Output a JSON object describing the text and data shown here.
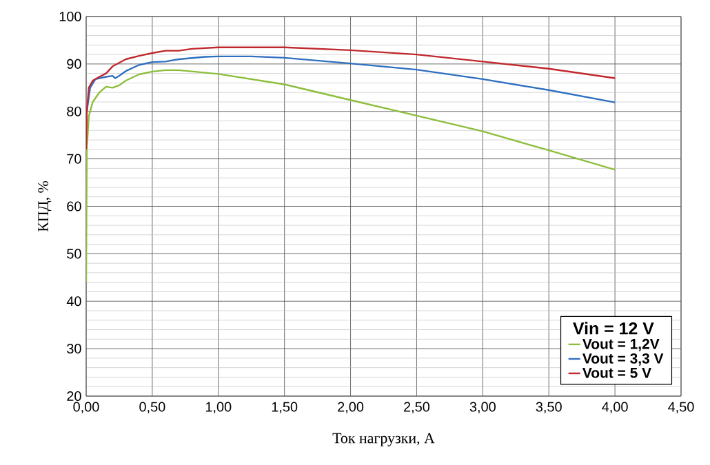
{
  "chart_data": {
    "type": "line",
    "xlabel": "Ток нагрузки, A",
    "ylabel": "КПД, %",
    "legend_title": "Vin = 12 V",
    "legend": "bottom right",
    "grid": true,
    "line_style": "solid",
    "marker": "none",
    "xlim": [
      0,
      4.5
    ],
    "ylim": [
      20,
      100
    ],
    "xticks": [
      {
        "value": 0,
        "label": "0,00"
      },
      {
        "value": 0.5,
        "label": "0,50"
      },
      {
        "value": 1,
        "label": "1,00"
      },
      {
        "value": 1.5,
        "label": "1,50"
      },
      {
        "value": 2,
        "label": "2,00"
      },
      {
        "value": 2.5,
        "label": "2,50"
      },
      {
        "value": 3,
        "label": "3,00"
      },
      {
        "value": 3.5,
        "label": "3,50"
      },
      {
        "value": 4,
        "label": "4,00"
      },
      {
        "value": 4.5,
        "label": "4,50"
      }
    ],
    "yticks": [
      20,
      30,
      40,
      50,
      60,
      70,
      80,
      90,
      100
    ],
    "series": [
      {
        "name": "Vout = 1,2V",
        "color": "#8cbe3c",
        "x": [
          0,
          0.005,
          0.02,
          0.05,
          0.1,
          0.15,
          0.2,
          0.25,
          0.3,
          0.4,
          0.5,
          0.6,
          0.7,
          1.0,
          1.5,
          2.0,
          2.5,
          3.0,
          3.5,
          4.0
        ],
        "values": [
          44,
          72,
          79,
          82,
          84,
          85.2,
          85,
          85.5,
          86.5,
          87.8,
          88.4,
          88.7,
          88.7,
          87.9,
          85.7,
          82.4,
          79.1,
          75.8,
          71.8,
          67.7
        ]
      },
      {
        "name": "Vout = 3,3 V",
        "color": "#2f6fc0",
        "x": [
          0.005,
          0.03,
          0.07,
          0.15,
          0.2,
          0.22,
          0.25,
          0.3,
          0.4,
          0.5,
          0.6,
          0.7,
          0.9,
          1.0,
          1.25,
          1.5,
          2.0,
          2.5,
          3.0,
          3.5,
          4.0
        ],
        "values": [
          80,
          85,
          86.8,
          87.3,
          87.5,
          87,
          87.5,
          88.5,
          89.8,
          90.4,
          90.5,
          91,
          91.5,
          91.6,
          91.6,
          91.3,
          90.1,
          88.8,
          86.8,
          84.5,
          81.9
        ]
      },
      {
        "name": "Vout = 5 V",
        "color": "#c0282d",
        "x": [
          0,
          0.005,
          0.02,
          0.05,
          0.1,
          0.15,
          0.2,
          0.3,
          0.4,
          0.5,
          0.6,
          0.7,
          0.8,
          1.0,
          1.5,
          2.0,
          2.5,
          3.0,
          3.5,
          4.0
        ],
        "values": [
          72,
          80,
          85,
          86.5,
          87.3,
          88,
          89.5,
          91,
          91.7,
          92.3,
          92.8,
          92.8,
          93.2,
          93.5,
          93.5,
          92.9,
          92.0,
          90.5,
          89,
          87
        ]
      }
    ]
  }
}
